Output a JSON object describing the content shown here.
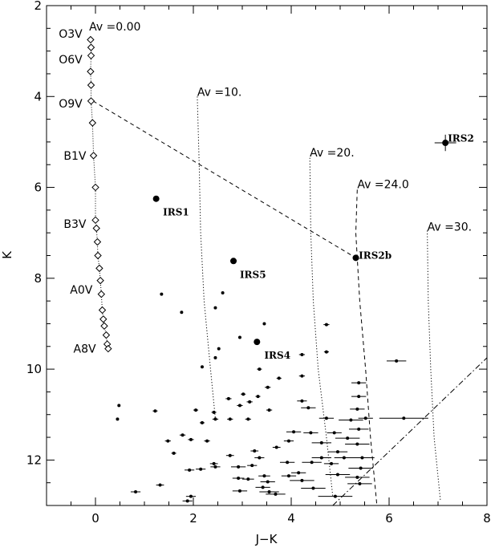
{
  "chart_data": {
    "type": "scatter",
    "xlabel": "J−K",
    "ylabel": "K",
    "xlim": [
      -1,
      8
    ],
    "ylim": [
      13,
      2
    ],
    "y_inverted": true,
    "x_ticks": [
      "0",
      "2",
      "4",
      "6",
      "8"
    ],
    "y_ticks": [
      "2",
      "4",
      "6",
      "8",
      "10",
      "12"
    ],
    "grid": false,
    "main_sequence": {
      "points": [
        {
          "x": -0.1,
          "y": 2.75
        },
        {
          "x": -0.09,
          "y": 2.92
        },
        {
          "x": -0.09,
          "y": 3.1
        },
        {
          "x": -0.1,
          "y": 3.45
        },
        {
          "x": -0.09,
          "y": 3.75
        },
        {
          "x": -0.09,
          "y": 4.1
        },
        {
          "x": -0.06,
          "y": 4.58
        },
        {
          "x": -0.04,
          "y": 5.3
        },
        {
          "x": 0.0,
          "y": 6.0
        },
        {
          "x": 0.0,
          "y": 6.72
        },
        {
          "x": 0.02,
          "y": 6.9
        },
        {
          "x": 0.04,
          "y": 7.2
        },
        {
          "x": 0.05,
          "y": 7.5
        },
        {
          "x": 0.08,
          "y": 7.78
        },
        {
          "x": 0.1,
          "y": 8.05
        },
        {
          "x": 0.12,
          "y": 8.35
        },
        {
          "x": 0.14,
          "y": 8.7
        },
        {
          "x": 0.16,
          "y": 8.9
        },
        {
          "x": 0.18,
          "y": 9.05
        },
        {
          "x": 0.22,
          "y": 9.25
        },
        {
          "x": 0.24,
          "y": 9.45
        },
        {
          "x": 0.26,
          "y": 9.55
        }
      ],
      "labels": [
        {
          "text": "O3V",
          "x": -0.75,
          "y": 2.62
        },
        {
          "text": "O6V",
          "x": -0.75,
          "y": 3.18
        },
        {
          "text": "O9V",
          "x": -0.75,
          "y": 4.15
        },
        {
          "text": "B1V",
          "x": -0.65,
          "y": 5.3
        },
        {
          "text": "B3V",
          "x": -0.65,
          "y": 6.8
        },
        {
          "text": "A0V",
          "x": -0.52,
          "y": 8.25
        },
        {
          "text": "A8V",
          "x": -0.45,
          "y": 9.55
        }
      ]
    },
    "reddening_vectors": [
      {
        "label": "Av =0.00",
        "label_x": -0.13,
        "label_y": 2.48,
        "style": "none",
        "points": []
      },
      {
        "label": "Av =10.",
        "label_x": 2.08,
        "label_y": 3.92,
        "style": "dotted",
        "points": [
          [
            2.08,
            4.0
          ],
          [
            2.12,
            5.5
          ],
          [
            2.15,
            7.0
          ],
          [
            2.22,
            8.5
          ],
          [
            2.35,
            10.0
          ],
          [
            2.45,
            11.1
          ]
        ]
      },
      {
        "label": "Av =20.",
        "label_x": 4.38,
        "label_y": 5.25,
        "style": "dotted",
        "points": [
          [
            4.38,
            5.35
          ],
          [
            4.4,
            7.0
          ],
          [
            4.45,
            8.5
          ],
          [
            4.55,
            10.0
          ],
          [
            4.72,
            11.5
          ],
          [
            4.85,
            12.8
          ]
        ]
      },
      {
        "label": "Av =24.0",
        "label_x": 5.35,
        "label_y": 5.95,
        "style": "dashed",
        "points": [
          [
            5.35,
            6.05
          ],
          [
            5.32,
            7.0
          ],
          [
            5.4,
            8.5
          ],
          [
            5.52,
            10.0
          ],
          [
            5.62,
            11.5
          ],
          [
            5.75,
            13.0
          ]
        ]
      },
      {
        "label": "Av =30.",
        "label_x": 6.78,
        "label_y": 6.88,
        "style": "dotted",
        "points": [
          [
            6.78,
            6.95
          ],
          [
            6.8,
            8.5
          ],
          [
            6.85,
            10.0
          ],
          [
            6.92,
            11.5
          ],
          [
            7.05,
            12.9
          ]
        ]
      }
    ],
    "reddening_line": {
      "style": "dashed",
      "points": [
        [
          -0.05,
          4.1
        ],
        [
          5.32,
          7.55
        ]
      ]
    },
    "completeness_line": {
      "style": "dash-dot",
      "points": [
        [
          4.85,
          13.0
        ],
        [
          8.0,
          9.75
        ]
      ]
    },
    "named_sources": [
      {
        "name": "IRS1",
        "x": 1.24,
        "y": 6.25,
        "label_x": 1.38,
        "label_y": 6.55
      },
      {
        "name": "IRS2",
        "x": 7.15,
        "y": 5.02,
        "label_x": 7.2,
        "label_y": 4.92,
        "xerr": 0.22,
        "yerr": 0.18
      },
      {
        "name": "IRS2b",
        "x": 5.32,
        "y": 7.55,
        "label_x": 5.38,
        "label_y": 7.5
      },
      {
        "name": "IRS4",
        "x": 3.3,
        "y": 9.4,
        "label_x": 3.45,
        "label_y": 9.7
      },
      {
        "name": "IRS5",
        "x": 2.82,
        "y": 7.62,
        "label_x": 2.95,
        "label_y": 7.92
      }
    ],
    "stars": [
      {
        "x": 1.35,
        "y": 8.35,
        "xerr": 0
      },
      {
        "x": 1.76,
        "y": 8.75,
        "xerr": 0
      },
      {
        "x": 2.6,
        "y": 8.32,
        "xerr": 0
      },
      {
        "x": 2.45,
        "y": 8.65,
        "xerr": 0
      },
      {
        "x": 2.95,
        "y": 9.3,
        "xerr": 0
      },
      {
        "x": 3.45,
        "y": 9.0,
        "xerr": 0
      },
      {
        "x": 2.18,
        "y": 9.95,
        "xerr": 0
      },
      {
        "x": 2.45,
        "y": 9.75,
        "xerr": 0
      },
      {
        "x": 2.52,
        "y": 9.55,
        "xerr": 0
      },
      {
        "x": 4.72,
        "y": 9.02,
        "xerr": 0.06
      },
      {
        "x": 4.72,
        "y": 9.62,
        "xerr": 0.05
      },
      {
        "x": 4.22,
        "y": 9.68,
        "xerr": 0.06
      },
      {
        "x": 4.22,
        "y": 10.15,
        "xerr": 0.06
      },
      {
        "x": 6.15,
        "y": 9.82,
        "xerr": 0.2
      },
      {
        "x": 3.35,
        "y": 10.0,
        "xerr": 0.05
      },
      {
        "x": 3.75,
        "y": 10.2,
        "xerr": 0.05
      },
      {
        "x": 3.52,
        "y": 10.4,
        "xerr": 0.06
      },
      {
        "x": 3.02,
        "y": 10.55,
        "xerr": 0.05
      },
      {
        "x": 3.32,
        "y": 10.6,
        "xerr": 0.05
      },
      {
        "x": 2.72,
        "y": 10.65,
        "xerr": 0.06
      },
      {
        "x": 3.15,
        "y": 10.72,
        "xerr": 0.06
      },
      {
        "x": 2.95,
        "y": 10.8,
        "xerr": 0.06
      },
      {
        "x": 2.05,
        "y": 10.9,
        "xerr": 0.05
      },
      {
        "x": 1.22,
        "y": 10.92,
        "xerr": 0.05
      },
      {
        "x": 2.42,
        "y": 10.95,
        "xerr": 0.05
      },
      {
        "x": 3.55,
        "y": 10.9,
        "xerr": 0.06
      },
      {
        "x": 2.75,
        "y": 11.1,
        "xerr": 0.06
      },
      {
        "x": 3.12,
        "y": 11.1,
        "xerr": 0.06
      },
      {
        "x": 2.45,
        "y": 11.1,
        "xerr": 0.06
      },
      {
        "x": 0.48,
        "y": 10.8,
        "xerr": 0
      },
      {
        "x": 0.45,
        "y": 11.1,
        "xerr": 0
      },
      {
        "x": 1.48,
        "y": 11.58,
        "xerr": 0.06
      },
      {
        "x": 1.78,
        "y": 11.45,
        "xerr": 0.06
      },
      {
        "x": 2.18,
        "y": 11.18,
        "xerr": 0.05
      },
      {
        "x": 2.28,
        "y": 11.58,
        "xerr": 0.06
      },
      {
        "x": 1.95,
        "y": 11.55,
        "xerr": 0.06
      },
      {
        "x": 1.6,
        "y": 11.85,
        "xerr": 0.05
      },
      {
        "x": 2.75,
        "y": 11.9,
        "xerr": 0.08
      },
      {
        "x": 3.25,
        "y": 11.8,
        "xerr": 0.08
      },
      {
        "x": 3.35,
        "y": 11.95,
        "xerr": 0.1
      },
      {
        "x": 3.7,
        "y": 11.72,
        "xerr": 0.08
      },
      {
        "x": 3.95,
        "y": 11.58,
        "xerr": 0.1
      },
      {
        "x": 4.05,
        "y": 11.38,
        "xerr": 0.15
      },
      {
        "x": 4.4,
        "y": 11.4,
        "xerr": 0.15
      },
      {
        "x": 4.72,
        "y": 11.08,
        "xerr": 0.15
      },
      {
        "x": 4.88,
        "y": 11.4,
        "xerr": 0.15
      },
      {
        "x": 4.35,
        "y": 10.85,
        "xerr": 0.15
      },
      {
        "x": 4.22,
        "y": 10.7,
        "xerr": 0.1
      },
      {
        "x": 5.38,
        "y": 10.3,
        "xerr": 0.15
      },
      {
        "x": 5.38,
        "y": 10.6,
        "xerr": 0.15
      },
      {
        "x": 5.35,
        "y": 10.88,
        "xerr": 0.15
      },
      {
        "x": 5.22,
        "y": 11.12,
        "xerr": 0.25
      },
      {
        "x": 5.52,
        "y": 11.08,
        "xerr": 0.15
      },
      {
        "x": 5.38,
        "y": 11.32,
        "xerr": 0.2
      },
      {
        "x": 5.15,
        "y": 11.52,
        "xerr": 0.25
      },
      {
        "x": 5.35,
        "y": 11.65,
        "xerr": 0.25
      },
      {
        "x": 5.45,
        "y": 11.95,
        "xerr": 0.25
      },
      {
        "x": 5.42,
        "y": 12.18,
        "xerr": 0.25
      },
      {
        "x": 5.35,
        "y": 12.38,
        "xerr": 0.25
      },
      {
        "x": 5.4,
        "y": 12.52,
        "xerr": 0.25
      },
      {
        "x": 5.08,
        "y": 11.95,
        "xerr": 0.2
      },
      {
        "x": 4.95,
        "y": 11.82,
        "xerr": 0.2
      },
      {
        "x": 4.62,
        "y": 11.62,
        "xerr": 0.2
      },
      {
        "x": 4.62,
        "y": 11.95,
        "xerr": 0.2
      },
      {
        "x": 4.42,
        "y": 12.05,
        "xerr": 0.2
      },
      {
        "x": 3.92,
        "y": 12.05,
        "xerr": 0.15
      },
      {
        "x": 4.22,
        "y": 12.45,
        "xerr": 0.25
      },
      {
        "x": 3.95,
        "y": 12.35,
        "xerr": 0.15
      },
      {
        "x": 4.45,
        "y": 12.62,
        "xerr": 0.25
      },
      {
        "x": 4.95,
        "y": 12.32,
        "xerr": 0.25
      },
      {
        "x": 4.9,
        "y": 12.8,
        "xerr": 0.35
      },
      {
        "x": 6.3,
        "y": 11.08,
        "xerr": 0.5
      },
      {
        "x": 4.82,
        "y": 12.08,
        "xerr": 0.15
      },
      {
        "x": 2.42,
        "y": 12.08,
        "xerr": 0.08
      },
      {
        "x": 2.45,
        "y": 12.15,
        "xerr": 0.1
      },
      {
        "x": 2.92,
        "y": 12.15,
        "xerr": 0.15
      },
      {
        "x": 3.2,
        "y": 12.12,
        "xerr": 0.1
      },
      {
        "x": 2.92,
        "y": 12.4,
        "xerr": 0.12
      },
      {
        "x": 3.12,
        "y": 12.42,
        "xerr": 0.12
      },
      {
        "x": 3.45,
        "y": 12.35,
        "xerr": 0.12
      },
      {
        "x": 3.52,
        "y": 12.48,
        "xerr": 0.15
      },
      {
        "x": 2.95,
        "y": 12.68,
        "xerr": 0.15
      },
      {
        "x": 3.55,
        "y": 12.7,
        "xerr": 0.2
      },
      {
        "x": 3.68,
        "y": 12.75,
        "xerr": 0.2
      },
      {
        "x": 1.92,
        "y": 12.22,
        "xerr": 0.1
      },
      {
        "x": 2.15,
        "y": 12.2,
        "xerr": 0.1
      },
      {
        "x": 1.32,
        "y": 12.55,
        "xerr": 0.08
      },
      {
        "x": 0.82,
        "y": 12.7,
        "xerr": 0.1
      },
      {
        "x": 1.95,
        "y": 12.8,
        "xerr": 0.1
      },
      {
        "x": 1.88,
        "y": 12.9,
        "xerr": 0.1
      },
      {
        "x": 3.42,
        "y": 12.6,
        "xerr": 0.15
      },
      {
        "x": 4.15,
        "y": 12.28,
        "xerr": 0.15
      }
    ]
  }
}
